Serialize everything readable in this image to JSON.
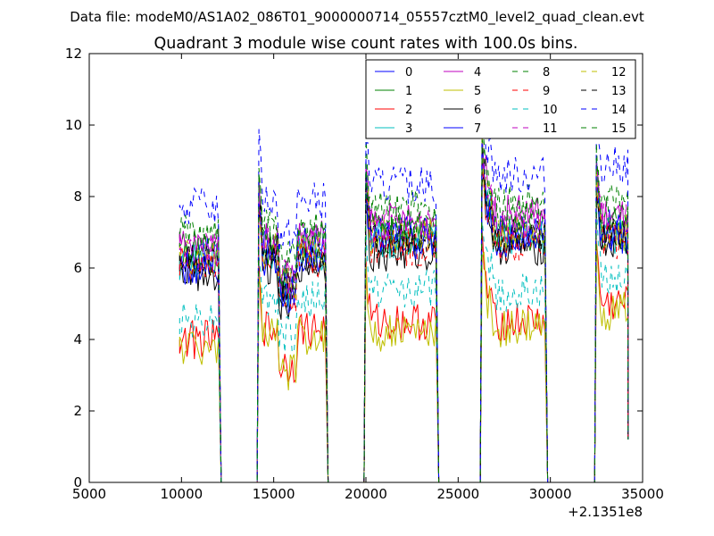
{
  "suptitle": "Data file: modeM0/AS1A02_086T01_9000000714_05557cztM0_level2_quad_clean.evt",
  "chart_data": {
    "type": "line",
    "title": "Quadrant 3 module wise count rates with 100.0s bins.",
    "xlabel": "",
    "ylabel": "",
    "x_offset_label": "+2.1351e8",
    "xlim": [
      5000,
      35000
    ],
    "ylim": [
      0,
      12
    ],
    "xticks": [
      5000,
      10000,
      15000,
      20000,
      25000,
      30000,
      35000
    ],
    "yticks": [
      0,
      2,
      4,
      6,
      8,
      10,
      12
    ],
    "grid": false,
    "legend": {
      "placement": "top-right",
      "ncol": 4
    },
    "note": "x values are in seconds relative to the axis offset +2.1351e8; segments are shown as [x_start, x_end] with ~100 s bins",
    "segments": [
      [
        9900,
        12000
      ],
      [
        14200,
        17800
      ],
      [
        20000,
        23800
      ],
      [
        26300,
        29700
      ],
      [
        32500,
        34200
      ]
    ],
    "gaps_at_zero": [
      [
        12200,
        14000
      ],
      [
        17900,
        19900
      ],
      [
        23900,
        26200
      ],
      [
        29800,
        32400
      ]
    ],
    "series": [
      {
        "name": "0",
        "color": "#0000ff",
        "dash": "solid",
        "levels": [
          6.4,
          6.6,
          7.0,
          6.9,
          7.1
        ]
      },
      {
        "name": "1",
        "color": "#008000",
        "dash": "solid",
        "levels": [
          6.3,
          6.5,
          6.9,
          7.0,
          7.0
        ]
      },
      {
        "name": "2",
        "color": "#ff0000",
        "dash": "solid",
        "levels": [
          4.0,
          4.3,
          4.5,
          4.5,
          5.0
        ]
      },
      {
        "name": "3",
        "color": "#00bfbf",
        "dash": "solid",
        "levels": [
          6.2,
          6.4,
          6.8,
          6.9,
          6.9
        ]
      },
      {
        "name": "4",
        "color": "#bf00bf",
        "dash": "solid",
        "levels": [
          6.6,
          6.8,
          7.3,
          7.5,
          7.4
        ]
      },
      {
        "name": "5",
        "color": "#bfbf00",
        "dash": "solid",
        "levels": [
          3.8,
          4.1,
          4.2,
          4.3,
          4.8
        ]
      },
      {
        "name": "6",
        "color": "#000000",
        "dash": "solid",
        "levels": [
          5.9,
          6.1,
          6.4,
          6.6,
          6.7
        ]
      },
      {
        "name": "7",
        "color": "#0000ff",
        "dash": "solid",
        "levels": [
          6.0,
          6.3,
          6.7,
          6.8,
          6.9
        ]
      },
      {
        "name": "8",
        "color": "#008000",
        "dash": "dashed",
        "levels": [
          7.0,
          7.2,
          7.7,
          7.8,
          7.8
        ]
      },
      {
        "name": "9",
        "color": "#ff0000",
        "dash": "dashed",
        "levels": [
          6.1,
          6.3,
          6.6,
          6.7,
          6.8
        ]
      },
      {
        "name": "10",
        "color": "#00bfbf",
        "dash": "dashed",
        "levels": [
          4.6,
          5.1,
          5.4,
          5.3,
          5.8
        ]
      },
      {
        "name": "11",
        "color": "#bf00bf",
        "dash": "dashed",
        "levels": [
          6.5,
          6.7,
          7.1,
          7.3,
          7.4
        ]
      },
      {
        "name": "12",
        "color": "#bfbf00",
        "dash": "dashed",
        "levels": [
          6.3,
          6.5,
          6.9,
          7.0,
          7.0
        ]
      },
      {
        "name": "13",
        "color": "#000000",
        "dash": "dashed",
        "levels": [
          6.2,
          6.4,
          6.8,
          6.9,
          6.9
        ]
      },
      {
        "name": "14",
        "color": "#0000ff",
        "dash": "dashed",
        "levels": [
          7.7,
          7.9,
          8.3,
          8.6,
          8.9
        ]
      },
      {
        "name": "15",
        "color": "#008000",
        "dash": "dashed",
        "levels": [
          6.7,
          6.9,
          7.3,
          7.5,
          7.5
        ]
      }
    ]
  }
}
